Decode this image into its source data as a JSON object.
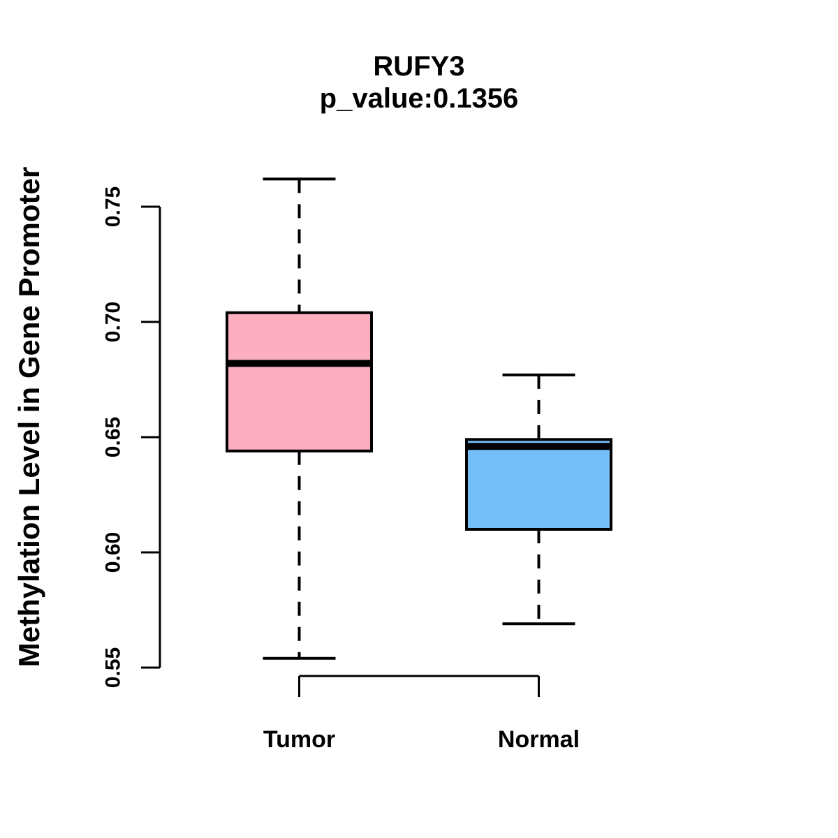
{
  "chart_data": {
    "type": "boxplot",
    "title": "RUFY3",
    "subtitle": "p_value:0.1356",
    "ylabel": "Methylation Level in Gene Promoter",
    "xlabel": "",
    "ylim": [
      0.55,
      0.75
    ],
    "yticks": [
      0.55,
      0.6,
      0.65,
      0.7,
      0.75
    ],
    "ytick_labels": [
      "0.55",
      "0.60",
      "0.65",
      "0.70",
      "0.75"
    ],
    "categories": [
      "Tumor",
      "Normal"
    ],
    "series": [
      {
        "name": "Tumor",
        "whisker_low": 0.554,
        "q1": 0.644,
        "median": 0.682,
        "q3": 0.704,
        "whisker_high": 0.762,
        "fill_color": "#FCAFC0"
      },
      {
        "name": "Normal",
        "whisker_low": 0.569,
        "q1": 0.61,
        "median": 0.646,
        "q3": 0.649,
        "whisker_high": 0.677,
        "fill_color": "#74BEF8"
      }
    ],
    "line_color": "#000000",
    "background": "#FFFFFF",
    "grid": false,
    "legend": "none",
    "whisker_style": "dashed"
  }
}
